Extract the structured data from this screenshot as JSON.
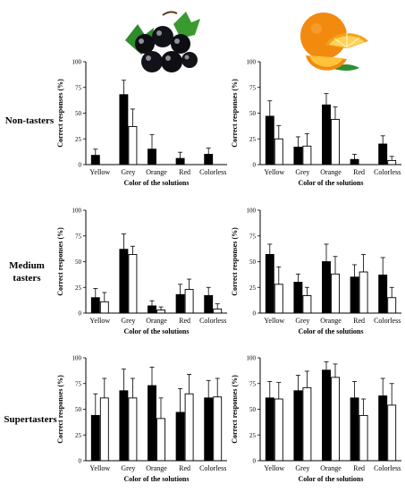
{
  "row_labels": {
    "non": "Non-tasters",
    "medium_line1": "Medium",
    "medium_line2": "tasters",
    "super": "Supertasters"
  },
  "images": {
    "blackcurrant": "blackcurrant-fruit-image",
    "orange": "orange-fruit-image"
  },
  "colors": {
    "bar_dark": "#000000",
    "bar_light": "#ffffff",
    "axis": "#000000"
  },
  "chart_data": [
    {
      "id": "blackcurrant-non-tasters",
      "type": "bar",
      "categories": [
        "Yellow",
        "Grey",
        "Orange",
        "Red",
        "Colorless"
      ],
      "xlabel": "Color of the solutions",
      "ylabel": "Correct responses (%)",
      "ylim": [
        0,
        100
      ],
      "yticks": [
        0,
        25,
        50,
        75,
        100
      ],
      "series": [
        {
          "values": [
            9,
            68,
            15,
            6,
            10
          ],
          "errors": [
            6,
            14,
            14,
            6,
            6
          ]
        },
        {
          "values": [
            0,
            37,
            0,
            0,
            0
          ],
          "errors": [
            0,
            17,
            0,
            0,
            0
          ]
        }
      ]
    },
    {
      "id": "orange-non-tasters",
      "type": "bar",
      "categories": [
        "Yellow",
        "Grey",
        "Orange",
        "Red",
        "Colorless"
      ],
      "xlabel": "Color of the solutions",
      "ylabel": "Correct responses (%)",
      "ylim": [
        0,
        100
      ],
      "yticks": [
        0,
        25,
        50,
        75,
        100
      ],
      "series": [
        {
          "values": [
            47,
            17,
            58,
            5,
            20
          ],
          "errors": [
            15,
            10,
            11,
            5,
            8
          ]
        },
        {
          "values": [
            25,
            18,
            44,
            0,
            4
          ],
          "errors": [
            13,
            12,
            12,
            0,
            4
          ]
        }
      ]
    },
    {
      "id": "blackcurrant-medium-tasters",
      "type": "bar",
      "categories": [
        "Yellow",
        "Grey",
        "Orange",
        "Red",
        "Colorless"
      ],
      "xlabel": "Color of the solutions",
      "ylabel": "Correct responses (%)",
      "ylim": [
        0,
        100
      ],
      "yticks": [
        0,
        25,
        50,
        75,
        100
      ],
      "series": [
        {
          "values": [
            15,
            62,
            7,
            18,
            17
          ],
          "errors": [
            9,
            15,
            5,
            10,
            8
          ]
        },
        {
          "values": [
            11,
            57,
            3,
            23,
            4
          ],
          "errors": [
            9,
            8,
            3,
            10,
            5
          ]
        }
      ]
    },
    {
      "id": "orange-medium-tasters",
      "type": "bar",
      "categories": [
        "Yellow",
        "Grey",
        "Orange",
        "Red",
        "Colorless"
      ],
      "xlabel": "Color of the solutions",
      "ylabel": "Correct responses (%)",
      "ylim": [
        0,
        100
      ],
      "yticks": [
        0,
        25,
        50,
        75,
        100
      ],
      "series": [
        {
          "values": [
            57,
            30,
            50,
            35,
            37
          ],
          "errors": [
            10,
            8,
            17,
            12,
            17
          ]
        },
        {
          "values": [
            28,
            17,
            38,
            40,
            15
          ],
          "errors": [
            17,
            8,
            17,
            17,
            10
          ]
        }
      ]
    },
    {
      "id": "blackcurrant-supertasters",
      "type": "bar",
      "categories": [
        "Yellow",
        "Grey",
        "Orange",
        "Red",
        "Colorless"
      ],
      "xlabel": "Color of the solutions",
      "ylabel": "Correct responses (%)",
      "ylim": [
        0,
        100
      ],
      "yticks": [
        0,
        25,
        50,
        75,
        100
      ],
      "series": [
        {
          "values": [
            44,
            68,
            73,
            47,
            61
          ],
          "errors": [
            21,
            21,
            18,
            23,
            17
          ]
        },
        {
          "values": [
            61,
            61,
            41,
            65,
            62
          ],
          "errors": [
            19,
            19,
            20,
            19,
            18
          ]
        }
      ]
    },
    {
      "id": "orange-supertasters",
      "type": "bar",
      "categories": [
        "Yellow",
        "Grey",
        "Orange",
        "Red",
        "Colorless"
      ],
      "xlabel": "Color of the solutions",
      "ylabel": "Correct responses (%)",
      "ylim": [
        0,
        100
      ],
      "yticks": [
        0,
        25,
        50,
        75,
        100
      ],
      "series": [
        {
          "values": [
            61,
            68,
            88,
            61,
            63
          ],
          "errors": [
            16,
            15,
            8,
            16,
            17
          ]
        },
        {
          "values": [
            60,
            71,
            81,
            44,
            54
          ],
          "errors": [
            16,
            16,
            13,
            16,
            21
          ]
        }
      ]
    }
  ]
}
